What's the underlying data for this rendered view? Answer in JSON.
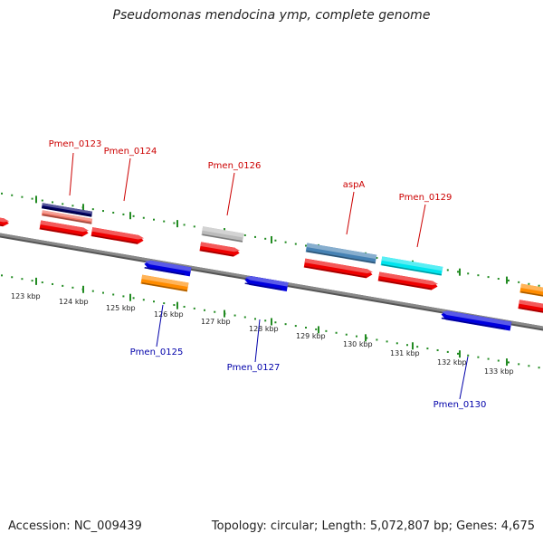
{
  "title": "Pseudomonas mendocina ymp, complete genome",
  "footer": {
    "accession": "Accession: NC_009439",
    "summary": "Topology: circular; Length: 5,072,807 bp; Genes: 4,675"
  },
  "colors": {
    "forward_label": "#cc0000",
    "reverse_label": "#0000aa",
    "backbone": "#888888",
    "scale_tick": "#228b22",
    "red": "#ee0000",
    "blue": "#0000dd",
    "orange": "#ff8c00",
    "navy": "#000066",
    "salmon": "#f07060",
    "grey": "#bbbbbb",
    "steelblue": "#4682b4",
    "cyan": "#00e5ee"
  },
  "scale_labels": [
    "123 kbp",
    "124 kbp",
    "125 kbp",
    "126 kbp",
    "127 kbp",
    "128 kbp",
    "129 kbp",
    "130 kbp",
    "131 kbp",
    "132 kbp",
    "133 kbp"
  ],
  "gene_labels": [
    {
      "text": "Pmen_0123",
      "strand": "forward"
    },
    {
      "text": "Pmen_0124",
      "strand": "forward"
    },
    {
      "text": "Pmen_0126",
      "strand": "forward"
    },
    {
      "text": "aspA",
      "strand": "forward"
    },
    {
      "text": "Pmen_0129",
      "strand": "forward"
    },
    {
      "text": "Pmen_0125",
      "strand": "reverse"
    },
    {
      "text": "Pmen_0127",
      "strand": "reverse"
    },
    {
      "text": "Pmen_0130",
      "strand": "reverse"
    }
  ]
}
